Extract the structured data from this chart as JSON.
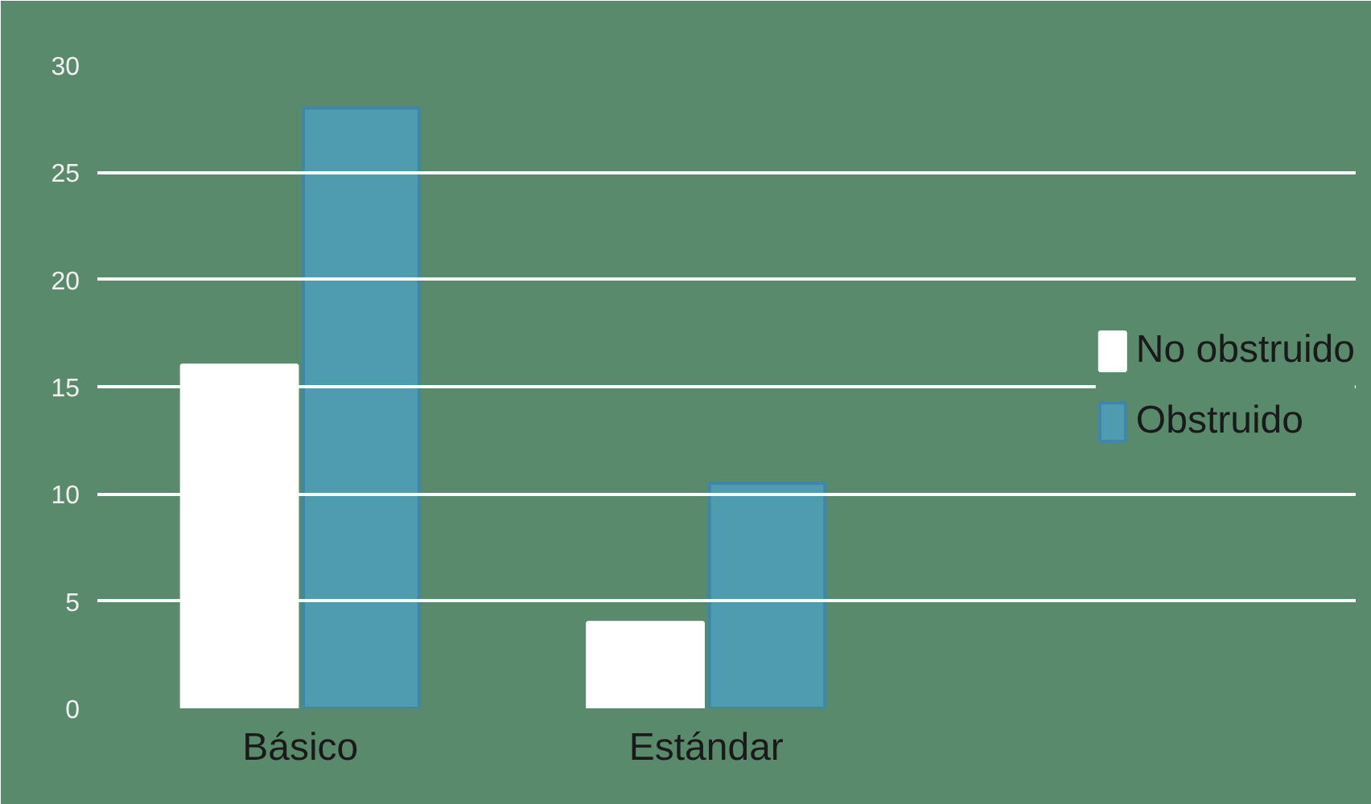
{
  "chart_data": {
    "type": "bar",
    "categories": [
      "Básico",
      "Estándar"
    ],
    "series": [
      {
        "name": "No obstruido",
        "color": "#ffffff",
        "values": [
          16,
          4
        ]
      },
      {
        "name": "Obstruido",
        "color": "#4f9cb0",
        "values": [
          28,
          10.5
        ]
      }
    ],
    "ylim": [
      0,
      30
    ],
    "yticks": [
      0,
      5,
      10,
      15,
      20,
      25,
      30
    ],
    "grid": "y",
    "legend": "right"
  }
}
